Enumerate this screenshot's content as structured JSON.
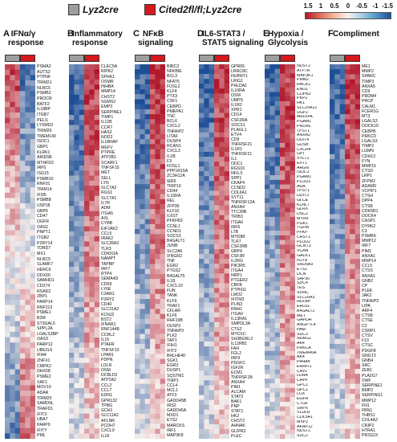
{
  "legend": {
    "items": [
      {
        "label": "Lyz2cre",
        "color": "#9e9e9e"
      },
      {
        "label": "Cited2fl/fl;Lyz2cre",
        "color": "#d7191c"
      }
    ]
  },
  "colorbar": {
    "ticks": [
      "1.5",
      "1",
      "0.5",
      "0",
      "-0.5",
      "-1",
      "-1.5"
    ],
    "colors": [
      "#b2182b",
      "#f7f1ee",
      "#1e4f96"
    ]
  },
  "panels": [
    {
      "letter": "A",
      "title_lines": [
        "IFNα/γ",
        "response"
      ],
      "pattern": "up_blue_down_red",
      "genes": [
        "PSMA2",
        "AUTS2",
        "PTPN6",
        "TRIM21",
        "NLRC5",
        "PSMB2",
        "PROCR",
        "BATF2",
        "IL18BP",
        "ITGB7",
        "PELI1",
        "LYSMD2",
        "TRIM26",
        "TMEM140",
        "ISOC1",
        "GBP1",
        "KLRK1",
        "ARID5B",
        "MTHFD2",
        "IRF5",
        "ISG15",
        "PSMB10",
        "RNF31",
        "TRIM14",
        "IFI35",
        "PSMB8",
        "USP18",
        "GBP6",
        "CD47",
        "OGFR",
        "OAS2",
        "PNPT1",
        "ITGB2",
        "P2RY14",
        "TDRD7",
        "MX1",
        "NLRC5",
        "SLAMF7",
        "HERC6",
        "DDX60",
        "SAMHD1",
        "CD274",
        "RSAD2",
        "ZBP1",
        "PARP14",
        "RNF213",
        "PSME1",
        "B2M",
        "ST3GAL5",
        "SPPL2A",
        "LGALS3BP",
        "OAS3",
        "PARP12",
        "UBE2L6",
        "IFI44",
        "ZNFX1",
        "CMPK2",
        "DHX58",
        "PSME2",
        "XAF1",
        "MOV10",
        "ADAR",
        "TRIM25",
        "SAMD9L",
        "TRAFD1",
        "IFIT3",
        "UBA7",
        "PARP9",
        "IFITY",
        "PML"
      ]
    },
    {
      "letter": "B",
      "title_lines": [
        "Inflammatory",
        "response"
      ],
      "pattern": "down_blue_up_red",
      "genes": [
        "CLEC5A",
        "RIPK2",
        "SPHK1",
        "OSMR",
        "INHBA",
        "MMP14",
        "CHST2",
        "SGMS2",
        "EMP3",
        "SERPINE1",
        "TIMP1",
        "IL12B",
        "CCR7",
        "HAS2",
        "NOD2",
        "IL18RAP",
        "MEFV",
        "PTPRE",
        "ATP2B1",
        "SCARF1",
        "TNFSF15",
        "MET",
        "SELL",
        "LYN",
        "SLC7A2",
        "RGS1",
        "SLC7A1",
        "IL7R",
        "ADM",
        "ITGA5",
        "AXL",
        "CYBB",
        "EIF2AK2",
        "CCL5",
        "IRAK2",
        "SLC28A2",
        "TLR3",
        "CDKN1A",
        "NAMPT",
        "TAPBP",
        "IRF7",
        "RTP4",
        "SEMA4D",
        "CD69",
        "LY6E",
        "C3AR1",
        "P2RY2",
        "CD40",
        "SLC31A2",
        "KCNJ2",
        "BST2",
        "IFNAR1",
        "RNF144B",
        "CCRL2",
        "IL15",
        "PTAFR",
        "TNFSF10",
        "LPAR1",
        "PDPN",
        "LDLR",
        "OSM",
        "DCBLD2",
        "ATP2A2",
        "CCL2",
        "CCL7",
        "EDN1",
        "GPR132",
        "TPBG",
        "GCH1",
        "SLC11A2",
        "AFLNR",
        "PCDH7",
        "CXCL9",
        "IL18"
      ]
    },
    {
      "letter": "C",
      "title_lines": [
        "NFκB",
        "signaling"
      ],
      "pattern": "down_blue_up_red",
      "genes": [
        "BIRC2",
        "NFKBIE",
        "BCL3",
        "NFAT5",
        "FOSL2",
        "KLF4",
        "PTX3",
        "CSF1",
        "CEBPD",
        "PMEPA1",
        "TNC",
        "BCL6",
        "CXCL2",
        "TNFAIP2",
        "LITAF",
        "DUSP4",
        "RCAN1",
        "CXCL3",
        "IL1B",
        "F3",
        "FOSL1",
        "PPP1R15A",
        "ZC3H12A",
        "IER5",
        "TRIP10",
        "CD44",
        "IL15RA",
        "REL",
        "ZFP36",
        "KLF10",
        "IL6ST",
        "PFKFB3",
        "CCNL1",
        "CCND1",
        "SOCS3",
        "B4GALT1",
        "JUNB",
        "SLC2A6",
        "IFNGR2",
        "TNF",
        "EGR2",
        "PTGS2",
        "B4GALT5",
        "IL18",
        "CXCL10",
        "FUN",
        "TANK",
        "KLF9",
        "TRAF1",
        "CFLAR",
        "KLF6",
        "RHF19B",
        "DUSP2",
        "TNFAIP3",
        "PLK2",
        "TAP1",
        "IFIH1",
        "IFIT2",
        "BHLHE40",
        "SGK1",
        "EGR3",
        "DUSP1",
        "SQSTM1",
        "TNIP1",
        "CCL4",
        "MCL1",
        "ATF3",
        "GADD45B",
        "IRS2",
        "GADD45A",
        "MXD1",
        "ETS2",
        "MARCKS",
        "IRF1",
        "MAP3K8"
      ]
    },
    {
      "letter": "D",
      "title_lines": [
        "IL6-STAT3 /",
        "STAT5 signaling"
      ],
      "pattern": "down_blue_up_red",
      "genes": [
        "GPR65",
        "LRRC8C",
        "FERMT1",
        "LRIG1",
        "PHLDA1",
        "IL10RA",
        "OSM",
        "UMPS",
        "IL1R2",
        "XPR1",
        "CD14",
        "CSF2RA",
        "SOCS1",
        "PLAGL1",
        "ETV4",
        "CD9",
        "TNFRSF21",
        "IL1R1",
        "TNFRSF21",
        "IL1",
        "ODC1",
        "RGS16",
        "NFIL3",
        "SPP1",
        "CKAP4",
        "CCND2",
        "COL6A1",
        "SYT11",
        "TNFRSF12A",
        "ANXA4",
        "TTC39B",
        "TRIB3",
        "ITGA6",
        "IRF6",
        "LTB",
        "MYD88",
        "TLR7",
        "CSF2RB",
        "GBP4",
        "CSF3R",
        "IL2RG",
        "PIK3R5",
        "ITGA4",
        "NRP1",
        "PTGER2",
        "CBFB",
        "PTPN11",
        "LMO2",
        "IFITM3",
        "PLIN2",
        "RNH1",
        "ITGAV",
        "IL13RA1",
        "SMPDL3A",
        "CTSZ",
        "MYO1C",
        "SH3BGRL2",
        "IL12RB1",
        "FAH",
        "FGL2",
        "IRF9",
        "PDGFC",
        "IGF2R",
        "ECM1",
        "TNFRSF1B",
        "ANXA4",
        "PIM1",
        "ALCAM",
        "STAT2",
        "BAK1",
        "PNP",
        "STAT1",
        "HK2",
        "CHST2",
        "AHNAK",
        "GLIPR2",
        "PLEC"
      ]
    },
    {
      "letter": "E",
      "title_lines": [
        "Hypoxia /",
        "Glycolysis"
      ],
      "pattern": "down_blue_up_red",
      "genes": [
        "NDST2",
        "ATP7A",
        "MAP3K1",
        "PMM2",
        "RBCK1",
        "ENO1",
        "COPB2",
        "PKP2",
        "HK1",
        "SLC25A12",
        "UGP2",
        "MEDD4L",
        "PGAM1",
        "PRDX6",
        "TPST1",
        "ANXA2",
        "DDIT4",
        "GUSB",
        "CXCR4",
        "GPI",
        "XYLT2",
        "EXT1",
        "ARGN",
        "ISOC1",
        "PGAM1",
        "PLOD3",
        "ADA",
        "TPST1",
        "DDIT3",
        "GLCE",
        "KLHL7",
        "GLRX",
        "DSC2",
        "MYH9",
        "PGK1",
        "TGFBI",
        "PFKP",
        "CHST1",
        "PLOD2",
        "GCNT3",
        "VCAN",
        "GALK1",
        "FUT8",
        "SRD5A3",
        "ETS1",
        "DCN",
        "SAP30",
        "SDC4",
        "TES",
        "SDHC",
        "SLC16A3",
        "HDLBP",
        "ERO1L",
        "B4GALT2",
        "MET",
        "GAPDH",
        "ANGPTL4",
        "PAM",
        "SDC3",
        "NDRG1",
        "AK4",
        "PRKCA",
        "TMEM45A",
        "AK4",
        "P4HA4",
        "ERRFI1",
        "CAV1",
        "LDHA",
        "CHPF",
        "GPC1",
        "GPC1",
        "LOX",
        "EGFR",
        "CTGF",
        "SRPX",
        "VLDLR",
        "COL5A1",
        "MXP2",
        "AKAP12",
        "NDST2",
        "SDC2"
      ]
    },
    {
      "letter": "F",
      "title_lines": [
        "Compliment",
        ""
      ],
      "pattern": "down_blue_up_red",
      "genes": [
        "ME1",
        "MMP2",
        "SPARC",
        "TIMP3",
        "ANXA5",
        "CD9",
        "PRDM4",
        "PRCP",
        "CALM1",
        "FCER1G",
        "MT3",
        "LGALS3",
        "DOCK10",
        "CEBPB",
        "PRKCD",
        "LGALS3",
        "TIMP2",
        "LGMN",
        "CDH13",
        "FYN",
        "MMP15",
        "CTSD",
        "LRP1",
        "ZFPM2",
        "ADAM9",
        "VCPIP1",
        "CTSH",
        "DPP4",
        "CTSB",
        "CDK5R1",
        "DOCK4",
        "CASP1",
        "DYRK2",
        "C3",
        "PSMB9",
        "MMP12",
        "IRF7",
        "PIM1",
        "ANXA1",
        "MMP14",
        "CCL5",
        "CTSS",
        "ANXA1",
        "GNB2",
        "CP",
        "PLEK",
        "JAK2",
        "TNFAIP3",
        "LIPA",
        "ARF4",
        "CTSB",
        "CTSE",
        "C2",
        "CSRP1",
        "CTSV",
        "F10",
        "CTSC",
        "PDGFB",
        "GNGT2",
        "GNB4",
        "SRC",
        "ZEB1",
        "PLA2G7",
        "VWF",
        "SERPINE1",
        "BMP2",
        "SERPING1",
        "MMP12",
        "FN1",
        "FBN1",
        "THBS1",
        "COL4A2",
        "CRIP2",
        "HTRA1",
        "PRSS23"
      ]
    }
  ]
}
